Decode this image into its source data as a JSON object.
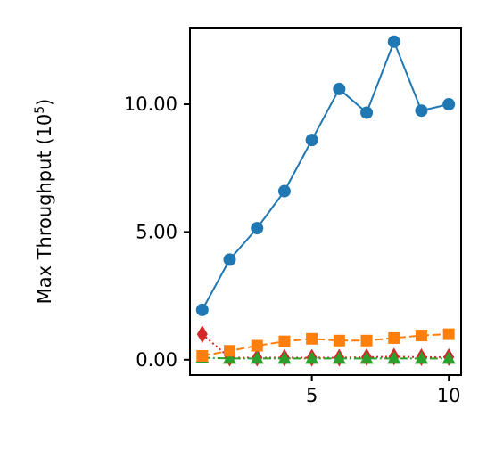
{
  "chart_data": {
    "type": "line",
    "title": "",
    "xlabel": "",
    "ylabel": "Max Throughput (10",
    "ylabel_sup": "5",
    "ylabel_close": ")",
    "x": [
      1,
      2,
      3,
      4,
      5,
      6,
      7,
      8,
      9,
      10
    ],
    "xlim": [
      0.55,
      10.45
    ],
    "ylim": [
      -0.6,
      13.0
    ],
    "xticks": [
      5,
      10
    ],
    "xtick_labels": [
      "5",
      "10"
    ],
    "yticks": [
      0,
      5,
      10
    ],
    "ytick_labels": [
      "0.00",
      "5.00",
      "10.00"
    ],
    "grid": false,
    "series": [
      {
        "color": "#1f77b4",
        "linestyle": "solid",
        "marker": "circle",
        "values": [
          1.95,
          3.92,
          5.15,
          6.6,
          8.6,
          10.6,
          9.67,
          12.45,
          9.75,
          10.0
        ]
      },
      {
        "color": "#ff7f0e",
        "linestyle": "dashed",
        "marker": "square",
        "values": [
          0.15,
          0.35,
          0.55,
          0.72,
          0.82,
          0.75,
          0.75,
          0.85,
          0.95,
          1.0
        ]
      },
      {
        "color": "#2ca02c",
        "linestyle": "dashdot",
        "marker": "triangle",
        "values": [
          0.08,
          0.05,
          0.05,
          0.05,
          0.05,
          0.05,
          0.05,
          0.05,
          0.05,
          0.05
        ]
      },
      {
        "color": "#d62728",
        "linestyle": "dotted",
        "marker": "diamond",
        "values": [
          1.0,
          0.08,
          0.08,
          0.08,
          0.08,
          0.08,
          0.1,
          0.12,
          0.1,
          0.1
        ]
      }
    ]
  }
}
